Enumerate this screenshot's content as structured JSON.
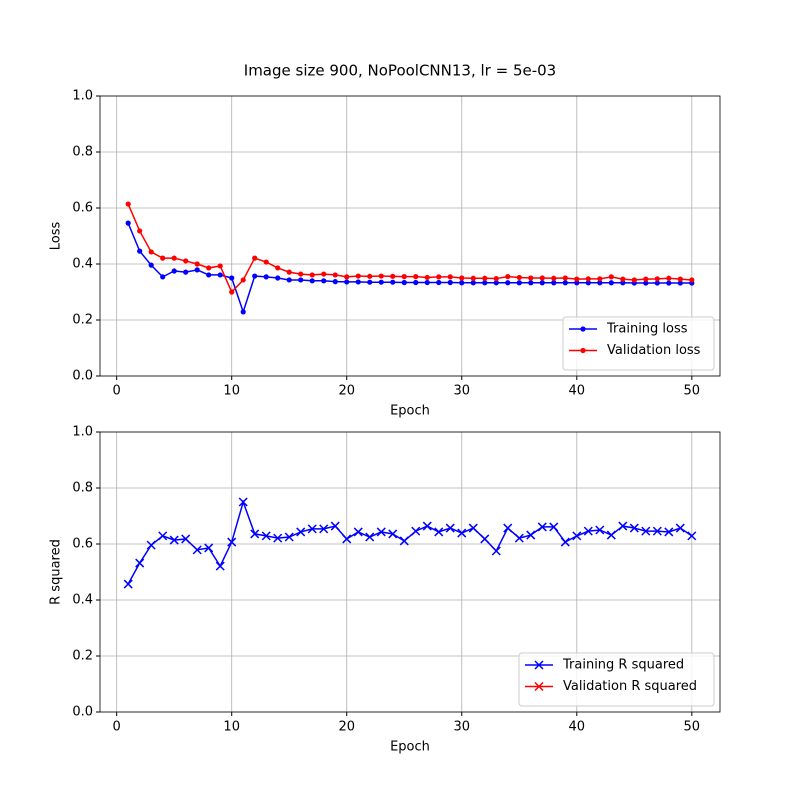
{
  "title": "Image size 900, NoPoolCNN13, lr = 5e-03",
  "chart_data": [
    {
      "type": "line",
      "marker": "dot",
      "xlabel": "Epoch",
      "ylabel": "Loss",
      "x": [
        1,
        2,
        3,
        4,
        5,
        6,
        7,
        8,
        9,
        10,
        11,
        12,
        13,
        14,
        15,
        16,
        17,
        18,
        19,
        20,
        21,
        22,
        23,
        24,
        25,
        26,
        27,
        28,
        29,
        30,
        31,
        32,
        33,
        34,
        35,
        36,
        37,
        38,
        39,
        40,
        41,
        42,
        43,
        44,
        45,
        46,
        47,
        48,
        49,
        50
      ],
      "series": [
        {
          "name": "Training loss",
          "color": "#0000ff",
          "values": [
            0.546,
            0.446,
            0.396,
            0.354,
            0.375,
            0.371,
            0.379,
            0.361,
            0.361,
            0.35,
            0.229,
            0.357,
            0.354,
            0.35,
            0.343,
            0.343,
            0.34,
            0.34,
            0.337,
            0.336,
            0.336,
            0.335,
            0.335,
            0.335,
            0.334,
            0.334,
            0.334,
            0.334,
            0.334,
            0.333,
            0.333,
            0.333,
            0.333,
            0.333,
            0.333,
            0.333,
            0.333,
            0.333,
            0.333,
            0.333,
            0.333,
            0.333,
            0.333,
            0.333,
            0.332,
            0.332,
            0.332,
            0.332,
            0.332,
            0.332
          ]
        },
        {
          "name": "Validation loss",
          "color": "#ff0000",
          "values": [
            0.614,
            0.518,
            0.443,
            0.421,
            0.421,
            0.411,
            0.4,
            0.386,
            0.393,
            0.3,
            0.343,
            0.421,
            0.407,
            0.386,
            0.371,
            0.364,
            0.361,
            0.364,
            0.361,
            0.354,
            0.357,
            0.356,
            0.357,
            0.356,
            0.355,
            0.355,
            0.352,
            0.354,
            0.354,
            0.35,
            0.349,
            0.349,
            0.348,
            0.355,
            0.352,
            0.35,
            0.35,
            0.349,
            0.35,
            0.346,
            0.347,
            0.347,
            0.354,
            0.346,
            0.343,
            0.346,
            0.347,
            0.349,
            0.346,
            0.343
          ]
        }
      ],
      "xlim": [
        -1.45,
        52.45
      ],
      "xticks": [
        0,
        10,
        20,
        30,
        40,
        50
      ],
      "ylim": [
        0,
        1
      ],
      "yticks": [
        {
          "value": 0,
          "label": "0.0"
        },
        {
          "value": 0.2,
          "label": "0.2"
        },
        {
          "value": 0.4,
          "label": "0.4"
        },
        {
          "value": 0.6,
          "label": "0.6"
        },
        {
          "value": 0.8,
          "label": "0.8"
        },
        {
          "value": 1,
          "label": "1.0"
        }
      ],
      "grid": true,
      "legend": "lower right"
    },
    {
      "type": "line",
      "marker": "x",
      "xlabel": "Epoch",
      "ylabel": "R squared",
      "x": [
        1,
        2,
        3,
        4,
        5,
        6,
        7,
        8,
        9,
        10,
        11,
        12,
        13,
        14,
        15,
        16,
        17,
        18,
        19,
        20,
        21,
        22,
        23,
        24,
        25,
        26,
        27,
        28,
        29,
        30,
        31,
        32,
        33,
        34,
        35,
        36,
        37,
        38,
        39,
        40,
        41,
        42,
        43,
        44,
        45,
        46,
        47,
        48,
        49,
        50
      ],
      "series": [
        {
          "name": "Training R squared",
          "color": "#0000ff",
          "values": [
            0.457,
            0.532,
            0.596,
            0.629,
            0.614,
            0.618,
            0.579,
            0.586,
            0.521,
            0.607,
            0.75,
            0.636,
            0.629,
            0.621,
            0.625,
            0.643,
            0.654,
            0.654,
            0.664,
            0.618,
            0.643,
            0.625,
            0.643,
            0.636,
            0.611,
            0.646,
            0.664,
            0.643,
            0.657,
            0.639,
            0.657,
            0.618,
            0.575,
            0.657,
            0.621,
            0.632,
            0.661,
            0.661,
            0.607,
            0.629,
            0.646,
            0.65,
            0.632,
            0.664,
            0.657,
            0.646,
            0.646,
            0.643,
            0.657,
            0.629
          ]
        },
        {
          "name": "Validation R squared",
          "color": "#ff0000",
          "values": [
            null,
            null,
            null,
            null,
            null,
            null,
            null,
            null,
            null,
            null,
            null,
            null,
            null,
            null,
            null,
            null,
            null,
            null,
            null,
            null,
            null,
            null,
            null,
            null,
            null,
            null,
            null,
            null,
            null,
            null,
            null,
            null,
            null,
            null,
            null,
            null,
            null,
            null,
            null,
            null,
            null,
            null,
            null,
            null,
            null,
            null,
            null,
            null,
            null,
            null
          ]
        }
      ],
      "xlim": [
        -1.45,
        52.45
      ],
      "xticks": [
        0,
        10,
        20,
        30,
        40,
        50
      ],
      "ylim": [
        0,
        1
      ],
      "yticks": [
        {
          "value": 0,
          "label": "0.0"
        },
        {
          "value": 0.2,
          "label": "0.2"
        },
        {
          "value": 0.4,
          "label": "0.4"
        },
        {
          "value": 0.6,
          "label": "0.6"
        },
        {
          "value": 0.8,
          "label": "0.8"
        },
        {
          "value": 1,
          "label": "1.0"
        }
      ],
      "grid": true,
      "legend": "lower right"
    }
  ]
}
